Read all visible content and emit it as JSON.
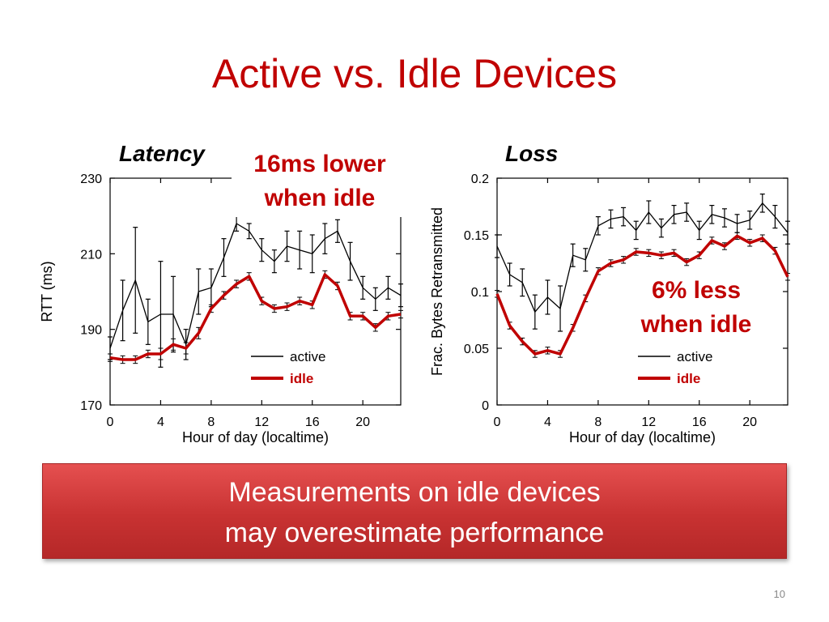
{
  "slide": {
    "title": "Active vs. Idle Devices",
    "page_number": "10",
    "banner_line1": "Measurements on idle devices",
    "banner_line2": "may overestimate performance"
  },
  "chart_data": [
    {
      "type": "line",
      "label": "Latency",
      "callout_line1": "16ms lower",
      "callout_line2": "when idle",
      "xlabel": "Hour of day (localtime)",
      "ylabel": "RTT (ms)",
      "xlim": [
        0,
        23
      ],
      "ylim": [
        170,
        230
      ],
      "xticks": [
        0,
        4,
        8,
        12,
        16,
        20
      ],
      "yticks": [
        170,
        190,
        210,
        230
      ],
      "grid": false,
      "legend_position": "bottom-right",
      "x": [
        0,
        1,
        2,
        3,
        4,
        5,
        6,
        7,
        8,
        9,
        10,
        11,
        12,
        13,
        14,
        15,
        16,
        17,
        18,
        19,
        20,
        21,
        22,
        23
      ],
      "series": [
        {
          "name": "active",
          "color": "#000000",
          "values": [
            185,
            195,
            203,
            192,
            194,
            194,
            186,
            200,
            201,
            209,
            218,
            216,
            211,
            208,
            212,
            211,
            210,
            214,
            216,
            208,
            201,
            198,
            201,
            199
          ],
          "errors": [
            3,
            8,
            14,
            6,
            14,
            10,
            4,
            6,
            5,
            5,
            2,
            2,
            3,
            3,
            4,
            5,
            5,
            4,
            3,
            5,
            3,
            3,
            3,
            3
          ]
        },
        {
          "name": "idle",
          "color": "#c00000",
          "values": [
            182.5,
            182,
            182,
            183.5,
            183.5,
            186,
            185,
            189,
            195.5,
            199,
            202,
            204,
            197.5,
            195.5,
            196,
            197.5,
            196.5,
            204.5,
            201.5,
            193.5,
            193.5,
            190.5,
            193.5,
            194
          ],
          "errors": [
            1,
            1,
            1,
            1,
            1.5,
            1.5,
            1.5,
            1.5,
            1,
            1,
            1,
            1,
            1,
            1,
            1,
            1,
            1,
            1,
            1,
            1,
            1,
            1,
            1,
            1
          ]
        }
      ]
    },
    {
      "type": "line",
      "label": "Loss",
      "callout_line1": "6% less",
      "callout_line2": "when idle",
      "xlabel": "Hour of day (localtime)",
      "ylabel": "Frac. Bytes Retransmitted",
      "xlim": [
        0,
        23
      ],
      "ylim": [
        0,
        0.2
      ],
      "xticks": [
        0,
        4,
        8,
        12,
        16,
        20
      ],
      "yticks": [
        0,
        0.05,
        0.1,
        0.15,
        0.2
      ],
      "ytick_labels": [
        "0",
        "0.05",
        "0.1",
        "0.15",
        "0.2"
      ],
      "grid": false,
      "legend_position": "bottom-right",
      "x": [
        0,
        1,
        2,
        3,
        4,
        5,
        6,
        7,
        8,
        9,
        10,
        11,
        12,
        13,
        14,
        15,
        16,
        17,
        18,
        19,
        20,
        21,
        22,
        23
      ],
      "series": [
        {
          "name": "active",
          "color": "#000000",
          "values": [
            0.14,
            0.115,
            0.108,
            0.082,
            0.095,
            0.085,
            0.132,
            0.128,
            0.158,
            0.164,
            0.166,
            0.154,
            0.17,
            0.156,
            0.168,
            0.17,
            0.154,
            0.168,
            0.165,
            0.16,
            0.163,
            0.178,
            0.166,
            0.152
          ],
          "errors": [
            0.01,
            0.01,
            0.012,
            0.015,
            0.015,
            0.02,
            0.01,
            0.01,
            0.008,
            0.008,
            0.008,
            0.008,
            0.01,
            0.008,
            0.008,
            0.008,
            0.008,
            0.008,
            0.008,
            0.008,
            0.008,
            0.008,
            0.01,
            0.01
          ]
        },
        {
          "name": "idle",
          "color": "#c00000",
          "values": [
            0.098,
            0.07,
            0.056,
            0.045,
            0.048,
            0.045,
            0.068,
            0.094,
            0.118,
            0.125,
            0.128,
            0.135,
            0.134,
            0.132,
            0.134,
            0.126,
            0.132,
            0.145,
            0.14,
            0.149,
            0.143,
            0.147,
            0.136,
            0.113
          ],
          "errors": [
            0.003,
            0.003,
            0.003,
            0.003,
            0.003,
            0.003,
            0.003,
            0.003,
            0.003,
            0.003,
            0.003,
            0.003,
            0.003,
            0.003,
            0.003,
            0.003,
            0.003,
            0.003,
            0.003,
            0.003,
            0.003,
            0.003,
            0.003,
            0.003
          ]
        }
      ]
    }
  ]
}
